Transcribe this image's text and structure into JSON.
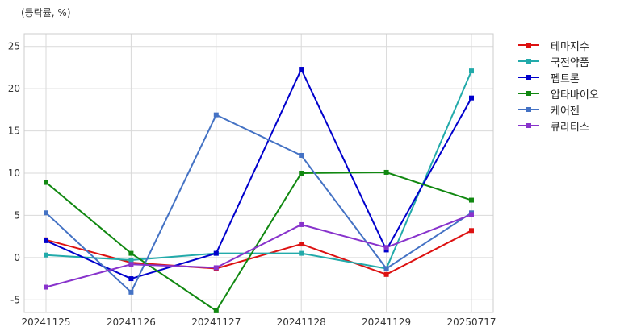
{
  "chart_data": {
    "type": "line",
    "title": "",
    "unit_label": "(등락률, %)",
    "xlabel": "",
    "ylabel": "",
    "categories": [
      "20241125",
      "20241126",
      "20241127",
      "20241128",
      "20241129",
      "20250717"
    ],
    "ylim": [
      -6.5,
      26.5
    ],
    "yticks": [
      -5,
      0,
      5,
      10,
      15,
      20,
      25
    ],
    "grid": true,
    "legend_position": "right",
    "series": [
      {
        "name": "테마지수",
        "color": "#dd1111",
        "values": [
          2.1,
          -0.6,
          -1.3,
          1.6,
          -2.0,
          3.2
        ]
      },
      {
        "name": "국전약품",
        "color": "#22aaaa",
        "values": [
          0.3,
          -0.3,
          0.5,
          0.5,
          -1.3,
          22.1
        ]
      },
      {
        "name": "펩트론",
        "color": "#0000cc",
        "values": [
          2.0,
          -2.5,
          0.5,
          22.3,
          0.9,
          18.9
        ]
      },
      {
        "name": "압타바이오",
        "color": "#118811",
        "values": [
          8.9,
          0.5,
          -6.3,
          10.0,
          10.1,
          6.8
        ]
      },
      {
        "name": "케어젠",
        "color": "#4472c4",
        "values": [
          5.3,
          -4.1,
          16.9,
          12.1,
          -1.3,
          5.3
        ]
      },
      {
        "name": "큐라티스",
        "color": "#8833cc",
        "values": [
          -3.5,
          -0.8,
          -1.2,
          3.9,
          1.2,
          5.1
        ]
      }
    ]
  }
}
